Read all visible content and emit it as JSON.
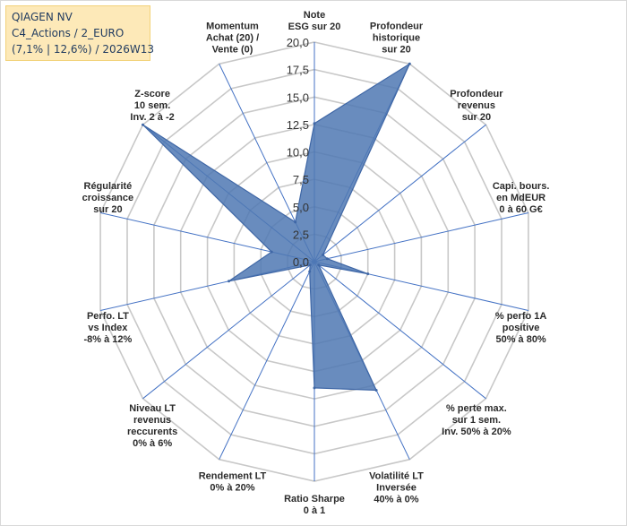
{
  "header": {
    "line1": "QIAGEN NV",
    "line2": "C4_Actions / 2_EURO",
    "line3": "(7,1% | 12,6%) / 2026W13"
  },
  "chart_data": {
    "type": "radar",
    "rmax": 20,
    "ticks": [
      "0,0",
      "2,5",
      "5,0",
      "7,5",
      "10,0",
      "12,5",
      "15,0",
      "17,5",
      "20,0"
    ],
    "axes": [
      {
        "label": [
          "Note",
          "ESG sur 20"
        ],
        "value": 12.6
      },
      {
        "label": [
          "Profondeur",
          "historique",
          "sur 20"
        ],
        "value": 20.0
      },
      {
        "label": [
          "Profondeur",
          "revenus",
          "sur 20"
        ],
        "value": 1.0
      },
      {
        "label": [
          "Capi. bours.",
          "en MdEUR",
          "0 à 60 G€"
        ],
        "value": 1.2
      },
      {
        "label": [
          "% perfo 1A",
          "positive",
          "50% à 80%"
        ],
        "value": 5.0
      },
      {
        "label": [
          "% perte max.",
          "sur 1 sem.",
          "Inv. 50% à 20%"
        ],
        "value": 0.5
      },
      {
        "label": [
          "Volatilité LT",
          "Inversée",
          "40% à 0%"
        ],
        "value": 13.0
      },
      {
        "label": [
          "Ratio Sharpe",
          "0 à 1"
        ],
        "value": 11.5
      },
      {
        "label": [
          "Rendement LT",
          "0% à 20%"
        ],
        "value": 1.0
      },
      {
        "label": [
          "Niveau LT",
          "revenus",
          "reccurents",
          "0% à 6%"
        ],
        "value": 0.5
      },
      {
        "label": [
          "Perfo. LT",
          "vs Index",
          "-8% à 12%"
        ],
        "value": 8.0
      },
      {
        "label": [
          "Régularité",
          "croissance",
          "sur 20"
        ],
        "value": 4.0
      },
      {
        "label": [
          "Z-score",
          "10 sem.",
          "Inv. 2 à -2"
        ],
        "value": 20.0
      },
      {
        "label": [
          "Momentum",
          "Achat (20) /",
          "Vente (0)"
        ],
        "value": 4.0
      }
    ],
    "colors": {
      "fill": "#4f78b3",
      "stroke": "#3f67a6",
      "axis": "#4472c4",
      "grid": "#c8c8c8"
    }
  }
}
